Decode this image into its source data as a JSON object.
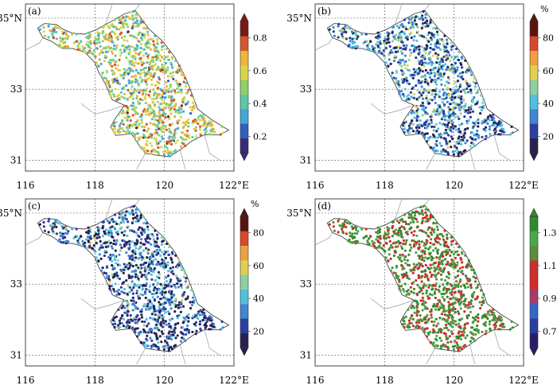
{
  "panels": [
    {
      "label": "(a)",
      "unit": "",
      "colorbar_ticks": [
        "0.2",
        "0.4",
        "0.6",
        "0.8"
      ],
      "tick_values": [
        0.2,
        0.4,
        0.6,
        0.8
      ],
      "value_range": [
        0.1,
        0.9
      ],
      "dot_bias": 0.55,
      "colormap": [
        "#3a2a7a",
        "#2d5fc0",
        "#3fa8d8",
        "#5cc8a8",
        "#8fd06a",
        "#d7d64a",
        "#f0b43a",
        "#d8542a",
        "#7a1a18"
      ]
    },
    {
      "label": "(b)",
      "unit": "%",
      "colorbar_ticks": [
        "20",
        "40",
        "60",
        "80"
      ],
      "tick_values": [
        20,
        40,
        60,
        80
      ],
      "value_range": [
        10,
        90
      ],
      "dot_bias": 0.3,
      "colormap": [
        "#26214f",
        "#2c3fa0",
        "#3f86d4",
        "#4fc0e0",
        "#8dd0a0",
        "#e0d050",
        "#f0a040",
        "#d84828",
        "#5a1410"
      ]
    },
    {
      "label": "(c)",
      "unit": "%",
      "colorbar_ticks": [
        "20",
        "40",
        "60",
        "80"
      ],
      "tick_values": [
        20,
        40,
        60,
        80
      ],
      "value_range": [
        10,
        90
      ],
      "dot_bias": 0.22,
      "colormap": [
        "#26214f",
        "#2c3fa0",
        "#3f86d4",
        "#4fc0e0",
        "#8dd0a0",
        "#e0d050",
        "#f0a040",
        "#d84828",
        "#5a1410"
      ]
    },
    {
      "label": "(d)",
      "unit": "",
      "colorbar_ticks": [
        "0.7",
        "0.9",
        "1.1",
        "1.3"
      ],
      "tick_values": [
        0.7,
        0.9,
        1.1,
        1.3
      ],
      "value_range": [
        0.6,
        1.4
      ],
      "dot_bias": 0.78,
      "colormap": [
        "#2a1b6b",
        "#2a3da0",
        "#2f66c8",
        "#a43c70",
        "#d42a2a",
        "#c93030",
        "#5a8f3a",
        "#4aa84a",
        "#2f8a2f"
      ]
    }
  ],
  "axes": {
    "x_ticks": [
      "116",
      "118",
      "120",
      "122°E"
    ],
    "x_tick_values": [
      116,
      118,
      120,
      122
    ],
    "y_ticks": [
      "31",
      "33",
      "35°N"
    ],
    "y_tick_values": [
      31,
      33,
      35
    ],
    "lon_range": [
      116,
      122
    ],
    "lat_range": [
      30.7,
      35.4
    ]
  }
}
